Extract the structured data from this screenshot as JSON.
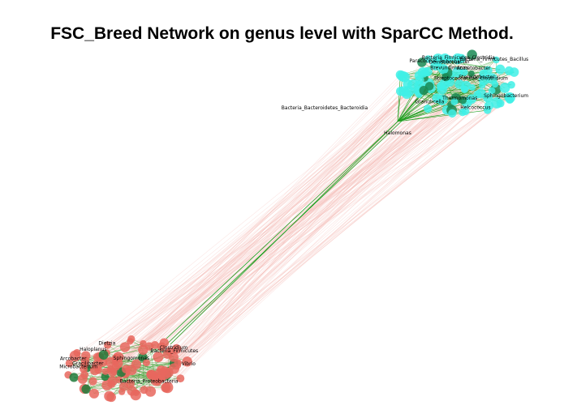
{
  "title": "FSC_Breed Network on genus level with SparCC Method.",
  "colors": {
    "cluster_top_node": "#3ff0e6",
    "cluster_top_node_dark": "#1a8a55",
    "cluster_bottom_node": "#e8675e",
    "cluster_bottom_node_dark": "#1e7a3a",
    "positive_edge": "#1f9e1f",
    "negative_edge": "#f4b4b0"
  },
  "clusters": [
    {
      "name": "top",
      "labels": [
        "Deinococcus",
        "Rubrobacter",
        "Thermomonas",
        "Sphingobacterium",
        "Paracoccus",
        "Steroidobacter",
        "Granulicella",
        "Helcococcus",
        "Brevundimonas",
        "Acinetobacter",
        "Bacteria_Firmicutes_Clostridia",
        "Streptococcaceae_Clostridium",
        "Bacteria_Bacteroidetes_Bacteroidia",
        "Bacteria_Firmicutes_Bacillus",
        "Halomonas"
      ]
    },
    {
      "name": "bottom",
      "labels": [
        "Haloplanus",
        "Bacteria_Firmicutes",
        "Sphingomonas",
        "Bacteria_Proteobacteria",
        "Vibrio",
        "Clostridium",
        "Dietzia",
        "Microbacterium",
        "Arcobacter",
        "Gracilibacter"
      ]
    }
  ]
}
